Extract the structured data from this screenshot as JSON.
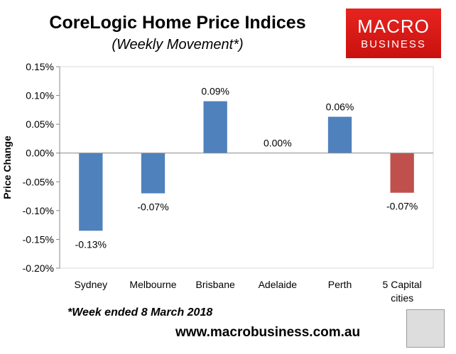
{
  "chart_data": {
    "type": "bar",
    "title": "CoreLogic Home Price Indices",
    "subtitle": "(Weekly Movement*)",
    "xlabel": "",
    "ylabel": "Price Change",
    "ylim": [
      -0.2,
      0.15
    ],
    "yticks": [
      0.15,
      0.1,
      0.05,
      0.0,
      -0.05,
      -0.1,
      -0.15,
      -0.2
    ],
    "ytick_labels": [
      "0.15%",
      "0.10%",
      "0.05%",
      "0.00%",
      "-0.05%",
      "-0.10%",
      "-0.15%",
      "-0.20%"
    ],
    "categories": [
      "Sydney",
      "Melbourne",
      "Brisbane",
      "Adelaide",
      "Perth",
      "5 Capital cities"
    ],
    "category_lines": [
      [
        "Sydney"
      ],
      [
        "Melbourne"
      ],
      [
        "Brisbane"
      ],
      [
        "Adelaide"
      ],
      [
        "Perth"
      ],
      [
        "5 Capital",
        "cities"
      ]
    ],
    "values": [
      -0.135,
      -0.07,
      0.09,
      0.0,
      0.063,
      -0.069
    ],
    "data_labels": [
      "-0.13%",
      "-0.07%",
      "0.09%",
      "0.00%",
      "0.06%",
      "-0.07%"
    ],
    "bar_colors": [
      "#4f81bd",
      "#4f81bd",
      "#4f81bd",
      "#4f81bd",
      "#4f81bd",
      "#c0504d"
    ],
    "grid": false
  },
  "footnote": "*Week ended 8 March 2018",
  "website": "www.macrobusiness.com.au",
  "logo": {
    "main": "MACRO",
    "sub": "BUSINESS"
  }
}
